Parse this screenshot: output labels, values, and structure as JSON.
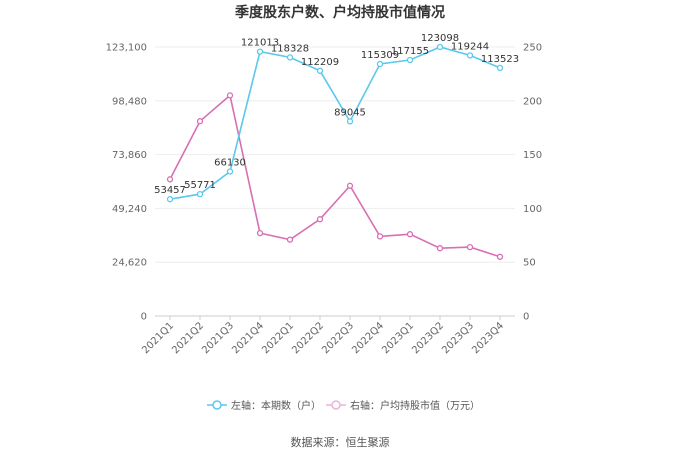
{
  "chart_data": {
    "type": "line",
    "title": "季度股东户数、户均持股市值情况",
    "categories": [
      "2021Q1",
      "2021Q2",
      "2021Q3",
      "2021Q4",
      "2022Q1",
      "2022Q2",
      "2022Q3",
      "2022Q4",
      "2023Q1",
      "2023Q2",
      "2023Q3",
      "2023Q4"
    ],
    "left_axis": {
      "ylim": [
        0,
        123100
      ],
      "ticks": [
        0,
        24620,
        49240,
        73860,
        98480,
        123100
      ],
      "tick_labels": [
        "0",
        "24,620",
        "49,240",
        "73,860",
        "98,480",
        "123,100"
      ]
    },
    "right_axis": {
      "ylim": [
        0,
        250
      ],
      "ticks": [
        0,
        50,
        100,
        150,
        200,
        250
      ],
      "tick_labels": [
        "0",
        "50",
        "100",
        "150",
        "200",
        "250"
      ]
    },
    "series": [
      {
        "name": "左轴：本期数（户）",
        "axis": "left",
        "color": "#5bc8ec",
        "values": [
          53457,
          55771,
          66130,
          121013,
          118328,
          112209,
          89045,
          115309,
          117155,
          123098,
          119244,
          113523
        ],
        "labels": [
          "53457",
          "55771",
          "66130",
          "121013",
          "118328",
          "112209",
          "89045",
          "115309",
          "117155",
          "123098",
          "119244",
          "113523"
        ]
      },
      {
        "name": "右轴：户均持股市值（万元）",
        "axis": "right",
        "color": "#d96fb3",
        "values": [
          127,
          181,
          205,
          77,
          71,
          90,
          121,
          74,
          76,
          63,
          64,
          55
        ]
      }
    ],
    "grid": true,
    "legend_position": "bottom"
  },
  "source": "数据来源：恒生聚源"
}
